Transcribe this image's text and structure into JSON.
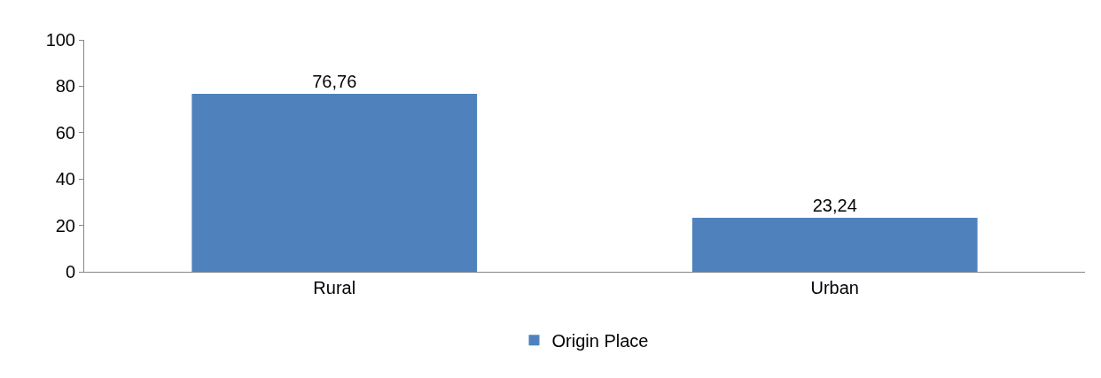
{
  "chart_data": {
    "type": "bar",
    "categories": [
      "Rural",
      "Urban"
    ],
    "series": [
      {
        "name": "Origin Place",
        "color": "#4f81bd",
        "values": [
          76.76,
          23.24
        ],
        "value_labels": [
          "76,76",
          "23,24"
        ]
      }
    ],
    "ylim": [
      0,
      100
    ],
    "yticks": [
      0,
      20,
      40,
      60,
      80,
      100
    ],
    "grid": false,
    "legend": "bottom"
  }
}
